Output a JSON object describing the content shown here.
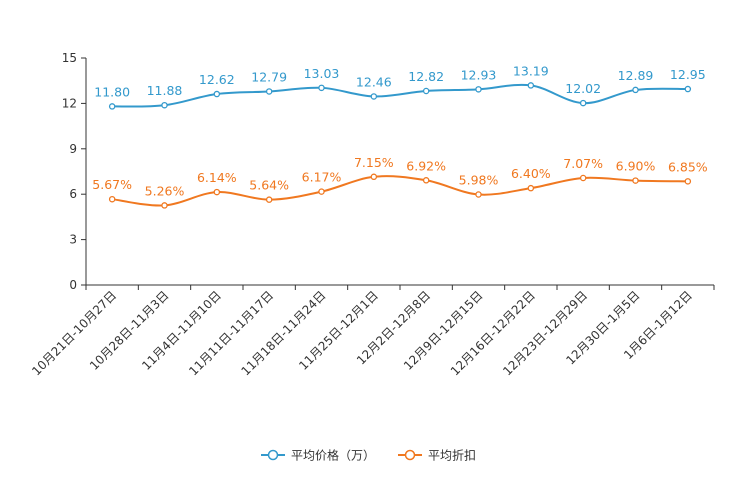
{
  "chart_data": {
    "type": "line",
    "title": "",
    "xlabel": "",
    "ylabel": "",
    "ylim": [
      0,
      15
    ],
    "yticks": [
      "0",
      "3",
      "6",
      "9",
      "12",
      "15"
    ],
    "grid": false,
    "legend_position": "bottom-center",
    "categories": [
      "10月21日-10月27日",
      "10月28日-11月3日",
      "11月4日-11月10日",
      "11月11日-11月17日",
      "11月18日-11月24日",
      "11月25日-12月1日",
      "12月2日-12月8日",
      "12月9日-12月15日",
      "12月16日-12月22日",
      "12月23日-12月29日",
      "12月30日-1月5日",
      "1月6日-1月12日"
    ],
    "series": [
      {
        "name": "平均价格（万）",
        "color": "#3399cc",
        "values": [
          11.8,
          11.88,
          12.62,
          12.79,
          13.03,
          12.46,
          12.82,
          12.93,
          13.19,
          12.02,
          12.89,
          12.95
        ],
        "labels": [
          "11.80",
          "11.88",
          "12.62",
          "12.79",
          "13.03",
          "12.46",
          "12.82",
          "12.93",
          "13.19",
          "12.02",
          "12.89",
          "12.95"
        ]
      },
      {
        "name": "平均折扣",
        "color": "#f07820",
        "values": [
          5.67,
          5.26,
          6.14,
          5.64,
          6.17,
          7.15,
          6.92,
          5.98,
          6.4,
          7.07,
          6.9,
          6.85
        ],
        "labels": [
          "5.67%",
          "5.26%",
          "6.14%",
          "5.64%",
          "6.17%",
          "7.15%",
          "6.92%",
          "5.98%",
          "6.40%",
          "7.07%",
          "6.90%",
          "6.85%"
        ]
      }
    ]
  }
}
